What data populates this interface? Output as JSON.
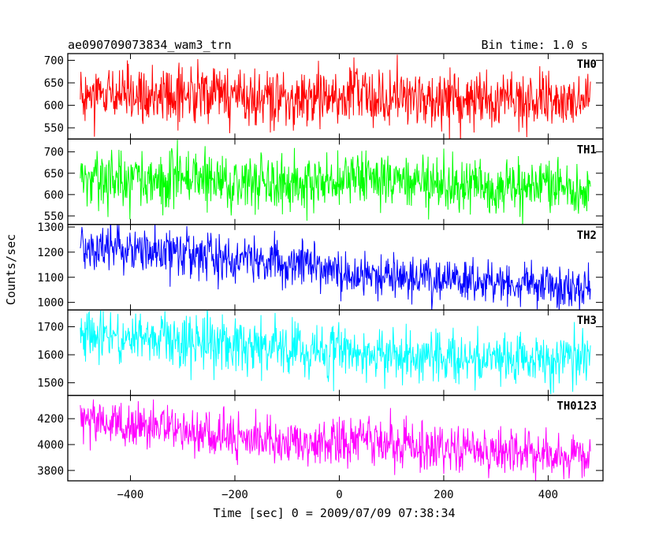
{
  "chart_data": {
    "type": "line",
    "title": "ae090709073834_wam3_trn",
    "subtitle": "Bin time: 1.0 s",
    "xlabel": "Time [sec] 0 = 2009/07/09 07:38:34",
    "ylabel": "Counts/sec",
    "xlim": [
      -520,
      505
    ],
    "x_ticks": [
      -400,
      -200,
      0,
      200,
      400
    ],
    "x_tick_labels": [
      "−400",
      "−200",
      "0",
      "200",
      "400"
    ],
    "x_range": [
      -496,
      481
    ],
    "x_step": 1,
    "grid": false,
    "panels": [
      {
        "name": "TH0",
        "color": "#ff0000",
        "ylim": [
          525,
          715
        ],
        "yticks": [
          550,
          600,
          650,
          700
        ],
        "trend": [
          [
            -496,
            628
          ],
          [
            -300,
            622
          ],
          [
            -100,
            612
          ],
          [
            0,
            614
          ],
          [
            30,
            640
          ],
          [
            60,
            618
          ],
          [
            200,
            612
          ],
          [
            300,
            614
          ],
          [
            481,
            610
          ]
        ],
        "noise": 32
      },
      {
        "name": "TH1",
        "color": "#00ff00",
        "ylim": [
          530,
          730
        ],
        "yticks": [
          550,
          600,
          650,
          700
        ],
        "trend": [
          [
            -496,
            640
          ],
          [
            -300,
            632
          ],
          [
            -100,
            622
          ],
          [
            0,
            630
          ],
          [
            40,
            640
          ],
          [
            200,
            622
          ],
          [
            481,
            618
          ]
        ],
        "noise": 33
      },
      {
        "name": "TH2",
        "color": "#0000ff",
        "ylim": [
          970,
          1310
        ],
        "yticks": [
          1000,
          1100,
          1200,
          1300
        ],
        "trend": [
          [
            -496,
            1225
          ],
          [
            -300,
            1190
          ],
          [
            -100,
            1155
          ],
          [
            0,
            1120
          ],
          [
            200,
            1090
          ],
          [
            481,
            1055
          ]
        ],
        "noise": 45
      },
      {
        "name": "TH3",
        "color": "#00ffff",
        "ylim": [
          1455,
          1760
        ],
        "yticks": [
          1500,
          1600,
          1700
        ],
        "trend": [
          [
            -496,
            1675
          ],
          [
            -300,
            1645
          ],
          [
            0,
            1615
          ],
          [
            200,
            1595
          ],
          [
            481,
            1585
          ]
        ],
        "noise": 48
      },
      {
        "name": "TH0123",
        "color": "#ff00ff",
        "ylim": [
          3720,
          4380
        ],
        "yticks": [
          3800,
          4000,
          4200
        ],
        "trend": [
          [
            -496,
            4185
          ],
          [
            -300,
            4100
          ],
          [
            -100,
            4020
          ],
          [
            0,
            4010
          ],
          [
            30,
            4060
          ],
          [
            200,
            3965
          ],
          [
            481,
            3905
          ]
        ],
        "noise": 85
      }
    ]
  }
}
